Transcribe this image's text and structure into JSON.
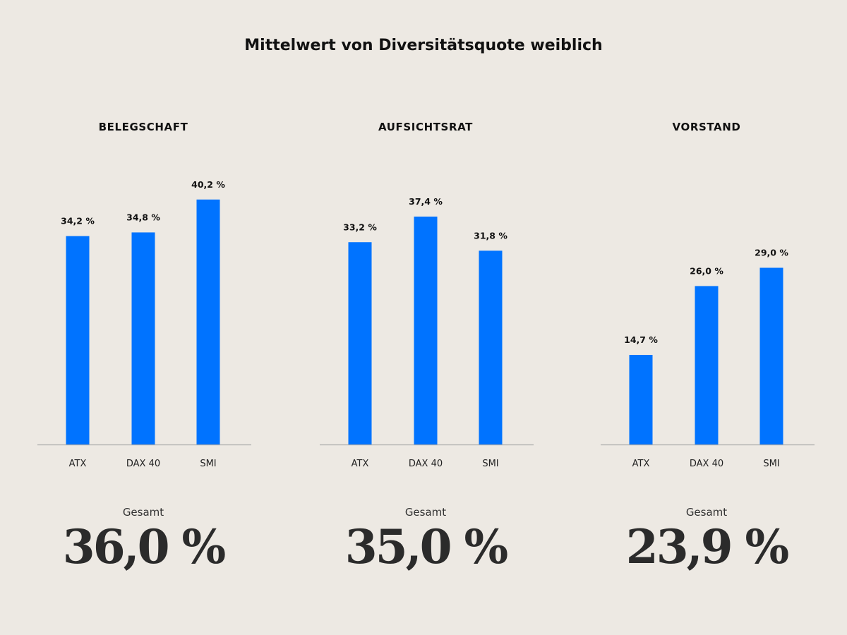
{
  "title": "Mittelwert von Diversitätsquote weiblich",
  "colors": {
    "background": "#ede9e3",
    "bar": "#0073ff",
    "axis": "#aaaaaa",
    "text": "#111111"
  },
  "chart_data": [
    {
      "type": "bar",
      "title": "BELEGSCHAFT",
      "categories": [
        "ATX",
        "DAX 40",
        "SMI"
      ],
      "values": [
        34.2,
        34.8,
        40.2
      ],
      "value_labels": [
        "34,2 %",
        "34,8 %",
        "40,2 %"
      ],
      "ylim": [
        0,
        50
      ],
      "grid": false,
      "total_label": "Gesamt",
      "total_value": "36,0 %"
    },
    {
      "type": "bar",
      "title": "AUFSICHTSRAT",
      "categories": [
        "ATX",
        "DAX 40",
        "SMI"
      ],
      "values": [
        33.2,
        37.4,
        31.8
      ],
      "value_labels": [
        "33,2 %",
        "37,4 %",
        "31,8 %"
      ],
      "ylim": [
        0,
        50
      ],
      "grid": false,
      "total_label": "Gesamt",
      "total_value": "35,0 %"
    },
    {
      "type": "bar",
      "title": "VORSTAND",
      "categories": [
        "ATX",
        "DAX 40",
        "SMI"
      ],
      "values": [
        14.7,
        26.0,
        29.0
      ],
      "value_labels": [
        "14,7 %",
        "26,0 %",
        "29,0 %"
      ],
      "ylim": [
        0,
        50
      ],
      "grid": false,
      "total_label": "Gesamt",
      "total_value": "23,9 %"
    }
  ]
}
